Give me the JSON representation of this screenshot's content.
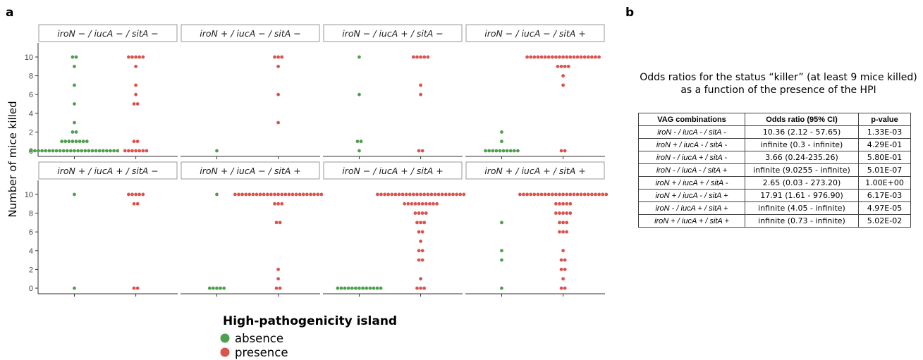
{
  "panel_a_label": "a",
  "panel_b_label": "b",
  "chart_data": {
    "type": "scatter",
    "ylabel": "Number of mice killed",
    "yticks": [
      0,
      2,
      4,
      6,
      8,
      10
    ],
    "ylim": [
      -0.6,
      11.5
    ],
    "categories": [
      "absence",
      "presence"
    ],
    "legend": {
      "title": "High-pathogenicity island",
      "placement": "bottom",
      "items": [
        {
          "label": "absence",
          "color": "#4ea04e"
        },
        {
          "label": "presence",
          "color": "#d9544f"
        }
      ]
    },
    "facets": [
      {
        "label": "iroN − / iucA − / sitA −",
        "absence": [
          10,
          10,
          9,
          7,
          5,
          3,
          2,
          2,
          1,
          1,
          1,
          1,
          1,
          1,
          1,
          1,
          0,
          0,
          0,
          0,
          0,
          0,
          0,
          0,
          0,
          0,
          0,
          0,
          0,
          0,
          0,
          0,
          0,
          0,
          0,
          0,
          0,
          0,
          0,
          0,
          0
        ],
        "presence": [
          10,
          10,
          10,
          10,
          10,
          9,
          7,
          6,
          5,
          5,
          1,
          1,
          0,
          0,
          0,
          0,
          0,
          0,
          0
        ]
      },
      {
        "label": "iroN + / iucA − / sitA −",
        "absence": [
          0
        ],
        "presence": [
          10,
          10,
          10,
          9,
          6,
          3
        ]
      },
      {
        "label": "iroN − / iucA + / sitA −",
        "absence": [
          10,
          6,
          1,
          1,
          0
        ],
        "presence": [
          10,
          10,
          10,
          10,
          10,
          7,
          6,
          0,
          0
        ]
      },
      {
        "label": "iroN − / iucA − / sitA +",
        "absence": [
          2,
          1,
          0,
          0,
          0,
          0,
          0,
          0,
          0,
          0,
          0,
          0
        ],
        "presence": [
          10,
          10,
          10,
          10,
          10,
          10,
          10,
          10,
          10,
          10,
          10,
          10,
          10,
          10,
          10,
          10,
          10,
          10,
          10,
          10,
          10,
          9,
          9,
          9,
          9,
          8,
          7,
          0,
          0
        ]
      },
      {
        "label": "iroN + / iucA + / sitA −",
        "absence": [
          10,
          0
        ],
        "presence": [
          10,
          10,
          10,
          10,
          10,
          9,
          9,
          0,
          0
        ]
      },
      {
        "label": "iroN + / iucA − / sitA +",
        "absence": [
          10,
          0,
          0,
          0,
          0,
          0
        ],
        "presence": [
          10,
          10,
          10,
          10,
          10,
          10,
          10,
          10,
          10,
          10,
          10,
          10,
          10,
          10,
          10,
          10,
          10,
          10,
          10,
          10,
          10,
          10,
          10,
          10,
          10,
          9,
          9,
          9,
          7,
          7,
          2,
          1,
          0,
          0
        ]
      },
      {
        "label": "iroN − / iucA + / sitA +",
        "absence": [
          0,
          0,
          0,
          0,
          0,
          0,
          0,
          0,
          0,
          0,
          0,
          0,
          0
        ],
        "presence": [
          10,
          10,
          10,
          10,
          10,
          10,
          10,
          10,
          10,
          10,
          10,
          10,
          10,
          10,
          10,
          10,
          10,
          10,
          10,
          10,
          10,
          10,
          10,
          10,
          10,
          9,
          9,
          9,
          9,
          9,
          9,
          9,
          9,
          9,
          9,
          8,
          8,
          8,
          8,
          7,
          7,
          7,
          6,
          6,
          5,
          4,
          4,
          3,
          3,
          1,
          0,
          0,
          0
        ]
      },
      {
        "label": "iroN + / iucA + / sitA +",
        "absence": [
          7,
          4,
          3,
          0
        ],
        "presence": [
          10,
          10,
          10,
          10,
          10,
          10,
          10,
          10,
          10,
          10,
          10,
          10,
          10,
          10,
          10,
          10,
          10,
          10,
          10,
          10,
          10,
          10,
          10,
          10,
          10,
          9,
          9,
          9,
          9,
          9,
          8,
          8,
          8,
          8,
          8,
          7,
          7,
          7,
          6,
          6,
          6,
          4,
          3,
          3,
          2,
          2,
          1,
          0,
          0
        ]
      }
    ]
  },
  "odds": {
    "title": "Odds ratios for the status “killer” (at least 9 mice killed) as a function of the presence of the HPI",
    "headers": [
      "VAG combinations",
      "Odds ratio (95% CI)",
      "p-value"
    ],
    "rows": [
      [
        "iroN - / iucA - / sitA -",
        "10.36 (2.12 - 57.65)",
        "1.33E-03"
      ],
      [
        "iroN + / iucA - / sitA -",
        "infinite (0.3 - infinite)",
        "4.29E-01"
      ],
      [
        "iroN - / iucA + / sitA -",
        "3.66 (0.24-235.26)",
        "5.80E-01"
      ],
      [
        "iroN - / iucA - / sitA +",
        "infinite (9.0255 - infinite)",
        "5.01E-07"
      ],
      [
        "iroN + / iucA + / sitA -",
        "2.65 (0.03 - 273.20)",
        "1.00E+00"
      ],
      [
        "iroN + / iucA - / sitA +",
        "17.91 (1.61 - 976.90)",
        "6.17E-03"
      ],
      [
        "iroN - / iucA + / sitA +",
        "infinite (4.05 - infinite)",
        "4.97E-05"
      ],
      [
        "iroN + / iucA + / sitA +",
        "infinite (0.73 - infinite)",
        "5.02E-02"
      ]
    ]
  }
}
